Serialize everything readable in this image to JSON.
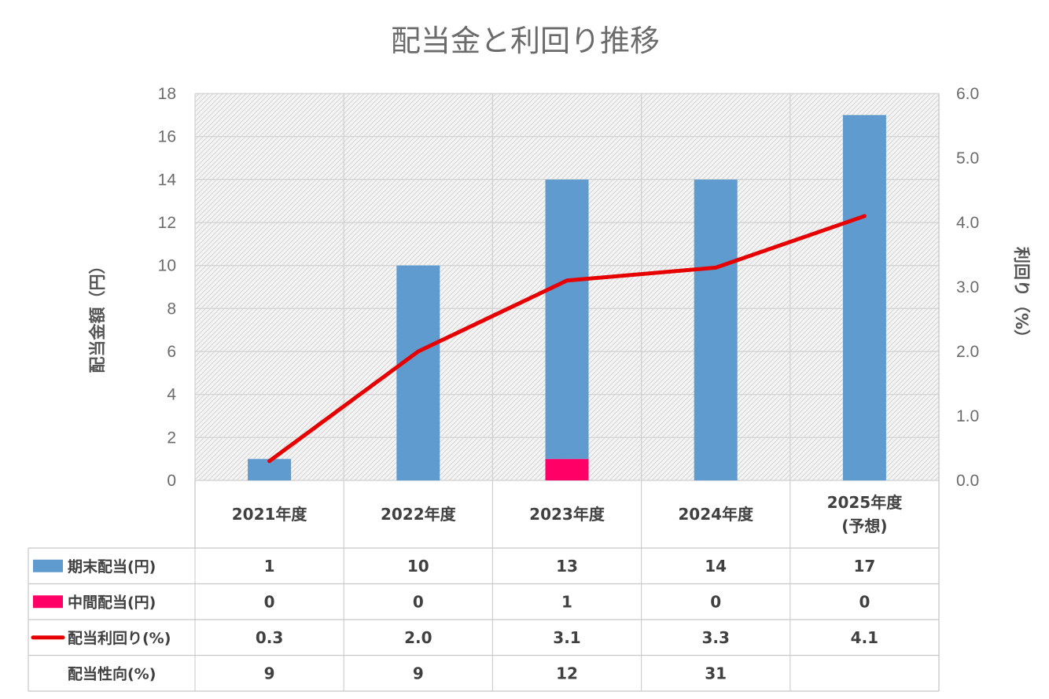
{
  "chart_data": {
    "type": "bar",
    "title": "配当金と利回り推移",
    "ylabel": "配当金額（円）",
    "y2label": "利回り（%）",
    "ylim": [
      0,
      18
    ],
    "y_ticks": [
      0,
      2,
      4,
      6,
      8,
      10,
      12,
      14,
      16,
      18
    ],
    "y2lim": [
      0,
      6
    ],
    "y2_ticks": [
      "0.0",
      "1.0",
      "2.0",
      "3.0",
      "4.0",
      "5.0",
      "6.0"
    ],
    "categories": [
      "2021年度",
      "2022年度",
      "2023年度",
      "2024年度",
      "2025年度\n(予想)"
    ],
    "stacked": true,
    "grid": true,
    "series": [
      {
        "name": "期末配当(円)",
        "type": "bar",
        "axis": "left",
        "color": "#5f9bcf",
        "values": [
          1,
          10,
          13,
          14,
          17
        ]
      },
      {
        "name": "中間配当(円)",
        "type": "bar",
        "axis": "left",
        "color": "#ff0066",
        "values": [
          0,
          0,
          1,
          0,
          0
        ]
      },
      {
        "name": "配当利回り(%)",
        "type": "line",
        "axis": "right",
        "color": "#e60000",
        "values": [
          0.3,
          2.0,
          3.1,
          3.3,
          4.1
        ]
      }
    ],
    "table": {
      "rows": [
        {
          "label": "期末配当(円)",
          "marker": "bar",
          "color": "#5f9bcf",
          "cells": [
            "1",
            "10",
            "13",
            "14",
            "17"
          ]
        },
        {
          "label": "中間配当(円)",
          "marker": "bar",
          "color": "#ff0066",
          "cells": [
            "0",
            "0",
            "1",
            "0",
            "0"
          ]
        },
        {
          "label": "配当利回り(%)",
          "marker": "line",
          "color": "#e60000",
          "cells": [
            "0.3",
            "2.0",
            "3.1",
            "3.3",
            "4.1"
          ]
        },
        {
          "label": "配当性向(%)",
          "marker": "none",
          "color": "",
          "cells": [
            "9",
            "9",
            "12",
            "31",
            ""
          ]
        }
      ]
    }
  }
}
